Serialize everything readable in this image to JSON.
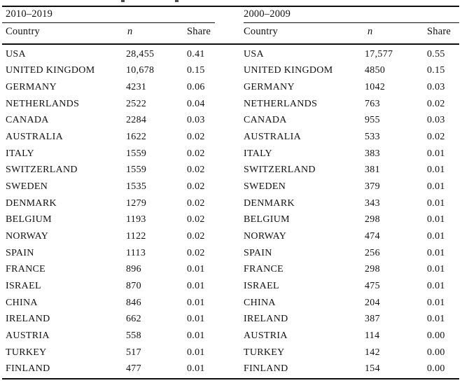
{
  "colors": {
    "background": "#ffffff",
    "text": "#121212",
    "rule": "#0e0e0e"
  },
  "table": {
    "groups": [
      {
        "period": "2010–2019",
        "headers": {
          "country": "Country",
          "n": "n",
          "share": "Share"
        },
        "rows": [
          {
            "country": "USA",
            "n": "28,455",
            "share": "0.41"
          },
          {
            "country": "UNITED KINGDOM",
            "n": "10,678",
            "share": "0.15"
          },
          {
            "country": "GERMANY",
            "n": "4231",
            "share": "0.06"
          },
          {
            "country": "NETHERLANDS",
            "n": "2522",
            "share": "0.04"
          },
          {
            "country": "CANADA",
            "n": "2284",
            "share": "0.03"
          },
          {
            "country": "AUSTRALIA",
            "n": "1622",
            "share": "0.02"
          },
          {
            "country": "ITALY",
            "n": "1559",
            "share": "0.02"
          },
          {
            "country": "SWITZERLAND",
            "n": "1559",
            "share": "0.02"
          },
          {
            "country": "SWEDEN",
            "n": "1535",
            "share": "0.02"
          },
          {
            "country": "DENMARK",
            "n": "1279",
            "share": "0.02"
          },
          {
            "country": "BELGIUM",
            "n": "1193",
            "share": "0.02"
          },
          {
            "country": "NORWAY",
            "n": "1122",
            "share": "0.02"
          },
          {
            "country": "SPAIN",
            "n": "1113",
            "share": "0.02"
          },
          {
            "country": "FRANCE",
            "n": "896",
            "share": "0.01"
          },
          {
            "country": "ISRAEL",
            "n": "870",
            "share": "0.01"
          },
          {
            "country": "CHINA",
            "n": "846",
            "share": "0.01"
          },
          {
            "country": "IRELAND",
            "n": "662",
            "share": "0.01"
          },
          {
            "country": "AUSTRIA",
            "n": "558",
            "share": "0.01"
          },
          {
            "country": "TURKEY",
            "n": "517",
            "share": "0.01"
          },
          {
            "country": "FINLAND",
            "n": "477",
            "share": "0.01"
          }
        ]
      },
      {
        "period": "2000–2009",
        "headers": {
          "country": "Country",
          "n": "n",
          "share": "Share"
        },
        "rows": [
          {
            "country": "USA",
            "n": "17,577",
            "share": "0.55"
          },
          {
            "country": "UNITED KINGDOM",
            "n": "4850",
            "share": "0.15"
          },
          {
            "country": "GERMANY",
            "n": "1042",
            "share": "0.03"
          },
          {
            "country": "NETHERLANDS",
            "n": "763",
            "share": "0.02"
          },
          {
            "country": "CANADA",
            "n": "955",
            "share": "0.03"
          },
          {
            "country": "AUSTRALIA",
            "n": "533",
            "share": "0.02"
          },
          {
            "country": "ITALY",
            "n": "383",
            "share": "0.01"
          },
          {
            "country": "SWITZERLAND",
            "n": "381",
            "share": "0.01"
          },
          {
            "country": "SWEDEN",
            "n": "379",
            "share": "0.01"
          },
          {
            "country": "DENMARK",
            "n": "343",
            "share": "0.01"
          },
          {
            "country": "BELGIUM",
            "n": "298",
            "share": "0.01"
          },
          {
            "country": "NORWAY",
            "n": "474",
            "share": "0.01"
          },
          {
            "country": "SPAIN",
            "n": "256",
            "share": "0.01"
          },
          {
            "country": "FRANCE",
            "n": "298",
            "share": "0.01"
          },
          {
            "country": "ISRAEL",
            "n": "475",
            "share": "0.01"
          },
          {
            "country": "CHINA",
            "n": "204",
            "share": "0.01"
          },
          {
            "country": "IRELAND",
            "n": "387",
            "share": "0.01"
          },
          {
            "country": "AUSTRIA",
            "n": "114",
            "share": "0.00"
          },
          {
            "country": "TURKEY",
            "n": "142",
            "share": "0.00"
          },
          {
            "country": "FINLAND",
            "n": "154",
            "share": "0.00"
          }
        ]
      }
    ]
  }
}
